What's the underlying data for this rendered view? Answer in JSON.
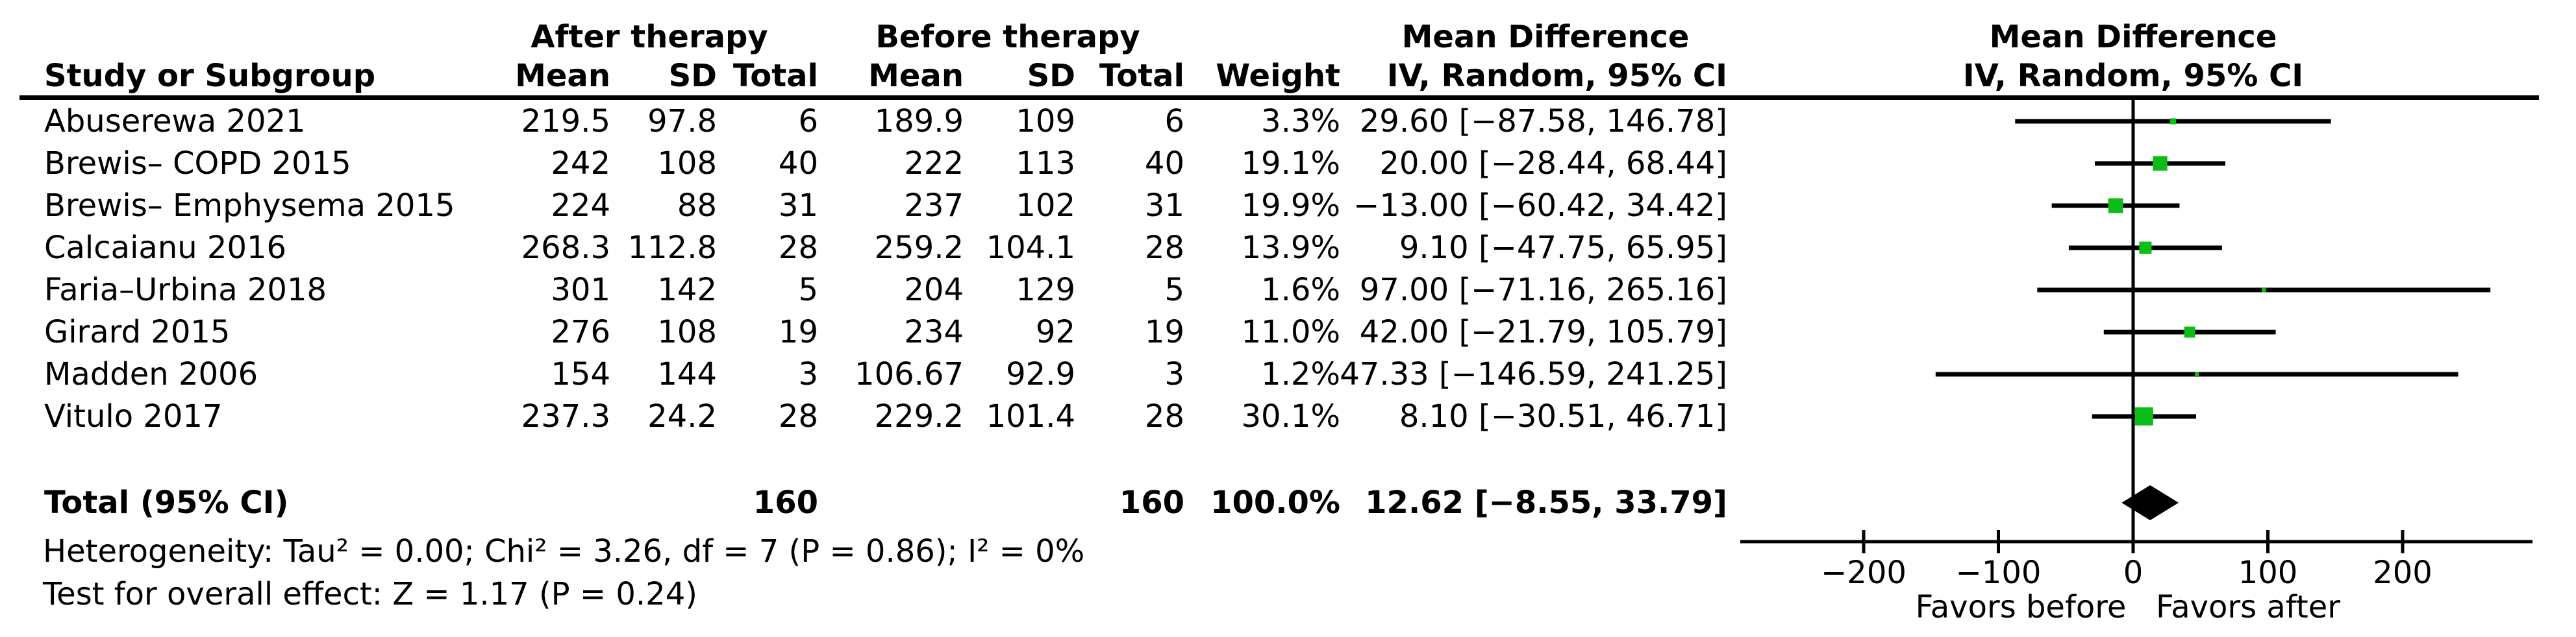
{
  "table": {
    "header": {
      "group_after": "After therapy",
      "group_before": "Before therapy",
      "md_text_title": "Mean Difference",
      "md_plot_title": "Mean Difference",
      "study": "Study or Subgroup",
      "mean_after": "Mean",
      "sd_after": "SD",
      "total_after": "Total",
      "mean_before": "Mean",
      "sd_before": "SD",
      "total_before": "Total",
      "weight": "Weight",
      "ci_text_sub": "IV, Random, 95% CI",
      "ci_plot_sub": "IV, Random, 95% CI"
    },
    "studies": [
      {
        "name": "Abuserewa 2021",
        "mean_after": "219.5",
        "sd_after": "97.8",
        "total_after": "6",
        "mean_before": "189.9",
        "sd_before": "109",
        "total_before": "6",
        "weight": "3.3%",
        "ci": "29.60 [−87.58, 146.78]"
      },
      {
        "name": "Brewis– COPD 2015",
        "mean_after": "242",
        "sd_after": "108",
        "total_after": "40",
        "mean_before": "222",
        "sd_before": "113",
        "total_before": "40",
        "weight": "19.1%",
        "ci": "20.00 [−28.44, 68.44]"
      },
      {
        "name": "Brewis– Emphysema 2015",
        "mean_after": "224",
        "sd_after": "88",
        "total_after": "31",
        "mean_before": "237",
        "sd_before": "102",
        "total_before": "31",
        "weight": "19.9%",
        "ci": "−13.00 [−60.42, 34.42]"
      },
      {
        "name": "Calcaianu 2016",
        "mean_after": "268.3",
        "sd_after": "112.8",
        "total_after": "28",
        "mean_before": "259.2",
        "sd_before": "104.1",
        "total_before": "28",
        "weight": "13.9%",
        "ci": "9.10 [−47.75, 65.95]"
      },
      {
        "name": "Faria–Urbina 2018",
        "mean_after": "301",
        "sd_after": "142",
        "total_after": "5",
        "mean_before": "204",
        "sd_before": "129",
        "total_before": "5",
        "weight": "1.6%",
        "ci": "97.00 [−71.16, 265.16]"
      },
      {
        "name": "Girard 2015",
        "mean_after": "276",
        "sd_after": "108",
        "total_after": "19",
        "mean_before": "234",
        "sd_before": "92",
        "total_before": "19",
        "weight": "11.0%",
        "ci": "42.00 [−21.79, 105.79]"
      },
      {
        "name": "Madden 2006",
        "mean_after": "154",
        "sd_after": "144",
        "total_after": "3",
        "mean_before": "106.67",
        "sd_before": "92.9",
        "total_before": "3",
        "weight": "1.2%",
        "ci": "47.33 [−146.59, 241.25]"
      },
      {
        "name": "Vitulo 2017",
        "mean_after": "237.3",
        "sd_after": "24.2",
        "total_after": "28",
        "mean_before": "229.2",
        "sd_before": "101.4",
        "total_before": "28",
        "weight": "30.1%",
        "ci": "8.10 [−30.51, 46.71]"
      }
    ],
    "total_row": {
      "label": "Total (95% CI)",
      "total_after": "160",
      "total_before": "160",
      "weight": "100.0%",
      "ci": "12.62 [−8.55, 33.79]"
    }
  },
  "footer": {
    "heterogeneity": "Heterogeneity: Tau² = 0.00; Chi² = 3.26, df = 7 (P = 0.86); I² = 0%",
    "overall_effect": "Test for overall effect: Z = 1.17 (P = 0.24)"
  },
  "chart_data": {
    "type": "scatter",
    "subtype": "forest_plot",
    "effect_measure": "Mean Difference",
    "model": "IV, Random, 95% CI",
    "x_ticks": [
      -200,
      -100,
      0,
      100,
      200
    ],
    "x_tick_labels": [
      "−200",
      "−100",
      "0",
      "100",
      "200"
    ],
    "xlim": [
      -290,
      295
    ],
    "zero_line": 0,
    "favors_left": "Favors before",
    "favors_right": "Favors after",
    "marker_color": "#0dbd17",
    "line_color": "#000000",
    "diamond_color": "#000000",
    "studies": [
      {
        "name": "Abuserewa 2021",
        "md": 29.6,
        "ci_low": -87.58,
        "ci_high": 146.78,
        "weight_pct": 3.3
      },
      {
        "name": "Brewis– COPD 2015",
        "md": 20.0,
        "ci_low": -28.44,
        "ci_high": 68.44,
        "weight_pct": 19.1
      },
      {
        "name": "Brewis– Emphysema 2015",
        "md": -13.0,
        "ci_low": -60.42,
        "ci_high": 34.42,
        "weight_pct": 19.9
      },
      {
        "name": "Calcaianu 2016",
        "md": 9.1,
        "ci_low": -47.75,
        "ci_high": 65.95,
        "weight_pct": 13.9
      },
      {
        "name": "Faria–Urbina 2018",
        "md": 97.0,
        "ci_low": -71.16,
        "ci_high": 265.16,
        "weight_pct": 1.6
      },
      {
        "name": "Girard 2015",
        "md": 42.0,
        "ci_low": -21.79,
        "ci_high": 105.79,
        "weight_pct": 11.0
      },
      {
        "name": "Madden 2006",
        "md": 47.33,
        "ci_low": -146.59,
        "ci_high": 241.25,
        "weight_pct": 1.2
      },
      {
        "name": "Vitulo 2017",
        "md": 8.1,
        "ci_low": -30.51,
        "ci_high": 46.71,
        "weight_pct": 30.1
      }
    ],
    "total": {
      "name": "Total (95% CI)",
      "md": 12.62,
      "ci_low": -8.55,
      "ci_high": 33.79
    }
  }
}
